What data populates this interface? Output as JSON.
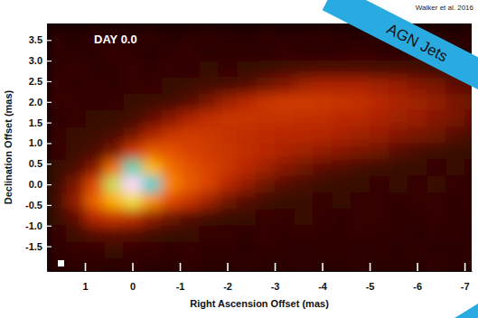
{
  "chart_data": {
    "type": "heatmap",
    "annotation": "DAY 0.0",
    "source": "Walker et al. 2016",
    "banner": "AGN Jets",
    "x_label": "Right Ascension Offset (mas)",
    "y_label": "Declination Offset (mas)",
    "xlim": [
      1.8,
      -7.15
    ],
    "ylim": [
      -2.1,
      3.9
    ],
    "xticks": [
      1,
      0,
      -1,
      -2,
      -3,
      -4,
      -5,
      -6,
      -7
    ],
    "yticks": [
      3.5,
      {
        "value": 3,
        "label": "3.0"
      },
      2.5,
      {
        "value": 2,
        "label": "2.0"
      },
      1.5,
      {
        "value": 1,
        "label": "1.0"
      },
      0.5,
      {
        "value": 0,
        "label": "0.0"
      },
      -0.5,
      {
        "value": -1,
        "label": "-1.0"
      },
      -1.5
    ],
    "grid": false,
    "zlim": [
      0,
      100
    ],
    "colors": [
      "#120000",
      "#3c0800",
      "#7a1400",
      "#b82800",
      "#e04800",
      "#f57a00",
      "#ffb000",
      "#f0e040",
      "#30d0d0",
      "#3050ff",
      "#ffd8ff"
    ],
    "cell_x": [
      1.6,
      1.2,
      0.8,
      0.4,
      0.0,
      -0.4,
      -0.8,
      -1.2,
      -1.6,
      -2.0,
      -2.4,
      -2.8,
      -3.2,
      -3.6,
      -4.0,
      -4.4,
      -4.8,
      -5.2,
      -5.6,
      -6.0,
      -6.4,
      -6.8,
      -7.2
    ],
    "cell_y": [
      3.6,
      3.2,
      2.8,
      2.4,
      2.0,
      1.6,
      1.2,
      0.8,
      0.4,
      0.0,
      -0.4,
      -0.8,
      -1.2,
      -1.6,
      -2.0
    ],
    "cells": [
      [
        6,
        5,
        7,
        6,
        6,
        7,
        5,
        6,
        7,
        6,
        5,
        7,
        6,
        6,
        7,
        6,
        5,
        6,
        7,
        6,
        6,
        5,
        6
      ],
      [
        7,
        6,
        6,
        8,
        7,
        6,
        7,
        8,
        6,
        7,
        7,
        6,
        8,
        7,
        6,
        7,
        8,
        7,
        6,
        7,
        6,
        7,
        6
      ],
      [
        7,
        8,
        6,
        7,
        8,
        7,
        8,
        7,
        9,
        8,
        9,
        10,
        11,
        12,
        13,
        13,
        13,
        12,
        12,
        11,
        10,
        9,
        8
      ],
      [
        8,
        7,
        8,
        7,
        8,
        8,
        9,
        10,
        11,
        12,
        14,
        18,
        22,
        26,
        28,
        28,
        28,
        26,
        25,
        22,
        20,
        16,
        14
      ],
      [
        8,
        8,
        7,
        8,
        9,
        10,
        11,
        14,
        20,
        26,
        30,
        34,
        36,
        36,
        35,
        34,
        33,
        30,
        28,
        26,
        24,
        20,
        18
      ],
      [
        7,
        8,
        9,
        9,
        11,
        16,
        22,
        28,
        32,
        34,
        34,
        33,
        33,
        32,
        32,
        30,
        30,
        28,
        26,
        25,
        22,
        20,
        16
      ],
      [
        8,
        9,
        10,
        12,
        18,
        28,
        34,
        36,
        35,
        33,
        32,
        31,
        30,
        30,
        29,
        28,
        26,
        25,
        22,
        20,
        18,
        14,
        12
      ],
      [
        8,
        10,
        12,
        20,
        36,
        44,
        42,
        38,
        36,
        34,
        32,
        30,
        28,
        26,
        24,
        22,
        20,
        18,
        14,
        12,
        10,
        9,
        9
      ],
      [
        9,
        12,
        22,
        48,
        78,
        62,
        48,
        42,
        38,
        34,
        30,
        26,
        22,
        18,
        15,
        13,
        11,
        10,
        9,
        9,
        8,
        9,
        8
      ],
      [
        10,
        20,
        40,
        72,
        100,
        80,
        52,
        44,
        38,
        30,
        24,
        18,
        14,
        12,
        10,
        9,
        9,
        8,
        9,
        8,
        9,
        8,
        7
      ],
      [
        11,
        24,
        46,
        60,
        70,
        54,
        40,
        34,
        26,
        18,
        14,
        11,
        9,
        9,
        8,
        9,
        8,
        8,
        7,
        8,
        8,
        7,
        8
      ],
      [
        9,
        16,
        30,
        34,
        32,
        24,
        18,
        14,
        11,
        9,
        9,
        8,
        8,
        9,
        8,
        7,
        8,
        8,
        7,
        7,
        8,
        7,
        7
      ],
      [
        8,
        10,
        14,
        15,
        14,
        11,
        9,
        9,
        8,
        8,
        7,
        8,
        7,
        8,
        7,
        7,
        8,
        7,
        7,
        6,
        7,
        7,
        6
      ],
      [
        7,
        8,
        8,
        9,
        8,
        8,
        7,
        8,
        7,
        7,
        6,
        7,
        7,
        6,
        7,
        7,
        6,
        7,
        6,
        7,
        6,
        6,
        7
      ],
      [
        6,
        6,
        7,
        6,
        7,
        6,
        6,
        7,
        6,
        6,
        7,
        6,
        6,
        7,
        6,
        6,
        7,
        6,
        6,
        6,
        7,
        6,
        6
      ]
    ]
  }
}
